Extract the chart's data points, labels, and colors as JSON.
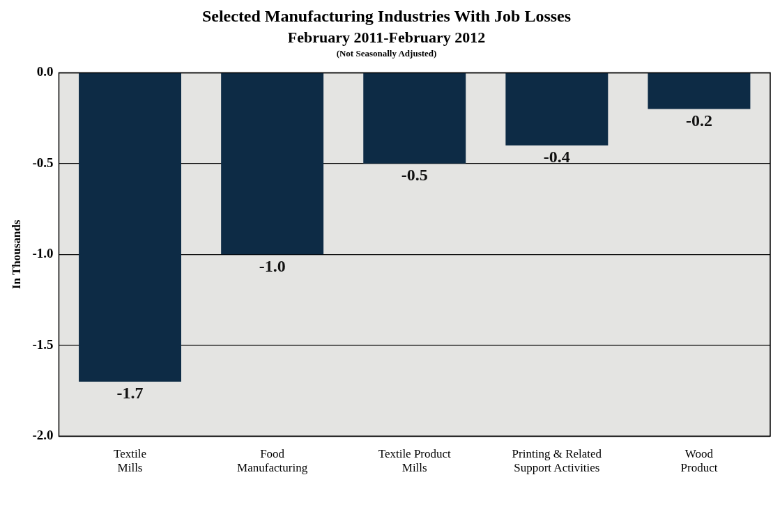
{
  "chart_data": {
    "type": "bar",
    "title": "Selected Manufacturing Industries With Job Losses",
    "subtitle": "February 2011-February 2012",
    "annotations": [
      "(Not Seasonally Adjusted)"
    ],
    "ylabel": "In Thousands",
    "categories": [
      "Textile Mills",
      "Food Manufacturing",
      "Textile Product Mills",
      "Printing & Related Support Activities",
      "Wood Product"
    ],
    "values": [
      -1.7,
      -1.0,
      -0.5,
      -0.4,
      -0.2
    ],
    "color": "#0d2b45",
    "ylim": [
      -2,
      0
    ],
    "yticks": [
      {
        "value": -2,
        "label": "-2.0"
      },
      {
        "value": -1.5,
        "label": "-1.5"
      },
      {
        "value": -1,
        "label": "-1.0"
      },
      {
        "value": -0.5,
        "label": "-0.5"
      },
      {
        "value": 0,
        "label": "0.0"
      }
    ],
    "value_labels": [
      "-1.7",
      "-1.0",
      "-0.5",
      "-0.4",
      "-0.2"
    ],
    "grid": "y",
    "legend": false
  }
}
